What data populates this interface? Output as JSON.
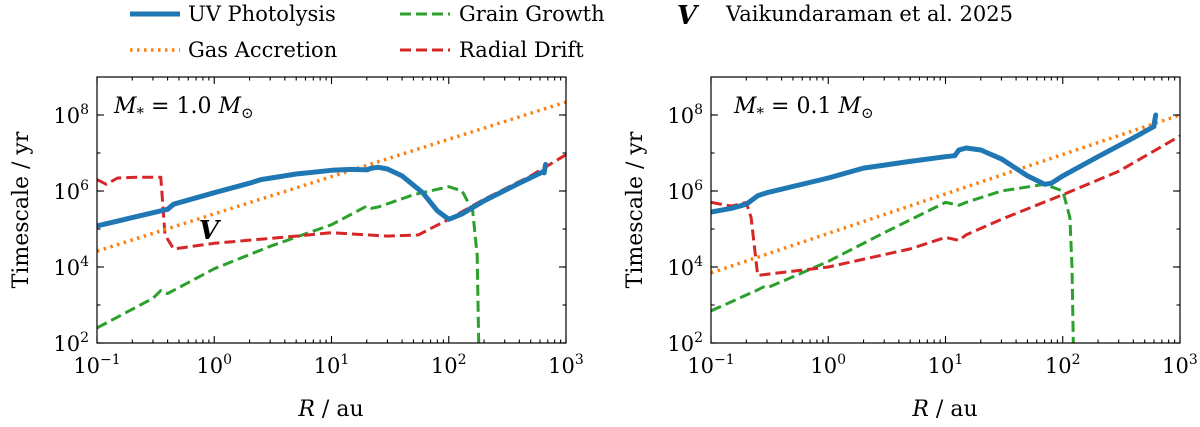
{
  "legend": {
    "entries": [
      {
        "label": "UV Photolysis",
        "color": "#1f77b4",
        "style": "solid"
      },
      {
        "label": "Grain Growth",
        "color": "#2ca02c",
        "style": "dashed"
      },
      {
        "label": "Vaikundaraman et al. 2025",
        "color": "#1f77b4",
        "style": "marker",
        "marker_glyph": "V"
      },
      {
        "label": "Gas Accretion",
        "color": "#ff7f0e",
        "style": "dotted"
      },
      {
        "label": "Radial Drift",
        "color": "#d62728",
        "style": "dashed"
      }
    ],
    "placement": "top"
  },
  "chart_data": [
    {
      "type": "line",
      "annotation": {
        "M": "M",
        "star_sub": "*",
        "eq": " = 1.0 ",
        "sun_sub": "⊙"
      },
      "xlabel": {
        "var": "R",
        "unit": " / au"
      },
      "ylabel": "Timescale / yr",
      "xscale": "log",
      "yscale": "log",
      "xlim": [
        0.1,
        1000
      ],
      "ylim": [
        100,
        1000000000
      ],
      "xticks": [
        {
          "value": 0.1,
          "base": "10",
          "exp": "−1"
        },
        {
          "value": 1,
          "base": "10",
          "exp": "0"
        },
        {
          "value": 10,
          "base": "10",
          "exp": "1"
        },
        {
          "value": 100,
          "base": "10",
          "exp": "2"
        },
        {
          "value": 1000,
          "base": "10",
          "exp": "3"
        }
      ],
      "yticks": [
        {
          "value": 100,
          "base": "10",
          "exp": "2"
        },
        {
          "value": 10000,
          "base": "10",
          "exp": "4"
        },
        {
          "value": 1000000,
          "base": "10",
          "exp": "6"
        },
        {
          "value": 100000000,
          "base": "10",
          "exp": "8"
        }
      ],
      "grid": false,
      "series": [
        {
          "name": "UV Photolysis",
          "color": "#1f77b4",
          "style": "solid",
          "x": [
            0.1,
            0.2,
            0.4,
            0.45,
            1,
            2,
            2.5,
            5,
            10,
            15,
            20,
            22,
            25,
            30,
            40,
            60,
            80,
            100,
            130,
            200,
            400,
            650,
            650,
            670
          ],
          "y": [
            120000,
            200000,
            330000,
            450000,
            900000,
            1600000,
            2000000,
            2800000,
            3500000,
            3700000,
            3600000,
            4000000,
            4200000,
            3800000,
            2500000,
            900000,
            300000,
            180000,
            250000,
            550000,
            1600000,
            3300000,
            3000000,
            5000000
          ]
        },
        {
          "name": "Gas Accretion",
          "color": "#ff7f0e",
          "style": "dotted",
          "x": [
            0.1,
            1000
          ],
          "y": [
            26000,
            220000000
          ]
        },
        {
          "name": "Grain Growth",
          "color": "#2ca02c",
          "style": "dashed",
          "x": [
            0.1,
            0.3,
            0.35,
            0.4,
            1,
            3,
            10,
            20,
            22,
            25,
            50,
            100,
            130,
            160,
            175,
            180
          ],
          "y": [
            250,
            1500,
            2400,
            2000,
            9000,
            35000,
            130000,
            400000,
            350000,
            380000,
            800000,
            1300000,
            1000000,
            300000,
            20000,
            100
          ]
        },
        {
          "name": "Radial Drift",
          "color": "#d62728",
          "style": "dashed",
          "x": [
            0.1,
            0.12,
            0.15,
            0.22,
            0.35,
            0.38,
            0.45,
            1,
            5,
            10,
            30,
            55,
            100,
            200,
            500,
            1000
          ],
          "y": [
            2000000,
            1500000,
            2200000,
            2300000,
            2300000,
            70000,
            30000,
            42000,
            65000,
            80000,
            65000,
            70000,
            180000,
            600000,
            2500000,
            9000000
          ]
        }
      ],
      "markers": [
        {
          "name": "Vaikundaraman et al. 2025",
          "glyph": "V",
          "color": "#1f77b4",
          "x": 0.9,
          "y": 95000
        }
      ]
    },
    {
      "type": "line",
      "annotation": {
        "M": "M",
        "star_sub": "*",
        "eq": " = 0.1 ",
        "sun_sub": "⊙"
      },
      "xlabel": {
        "var": "R",
        "unit": " / au"
      },
      "ylabel": "Timescale / yr",
      "xscale": "log",
      "yscale": "log",
      "xlim": [
        0.1,
        1000
      ],
      "ylim": [
        100,
        1000000000
      ],
      "xticks": [
        {
          "value": 0.1,
          "base": "10",
          "exp": "−1"
        },
        {
          "value": 1,
          "base": "10",
          "exp": "0"
        },
        {
          "value": 10,
          "base": "10",
          "exp": "1"
        },
        {
          "value": 100,
          "base": "10",
          "exp": "2"
        },
        {
          "value": 1000,
          "base": "10",
          "exp": "3"
        }
      ],
      "yticks": [
        {
          "value": 100,
          "base": "10",
          "exp": "2"
        },
        {
          "value": 10000,
          "base": "10",
          "exp": "4"
        },
        {
          "value": 1000000,
          "base": "10",
          "exp": "6"
        },
        {
          "value": 100000000,
          "base": "10",
          "exp": "8"
        }
      ],
      "grid": false,
      "series": [
        {
          "name": "UV Photolysis",
          "color": "#1f77b4",
          "style": "solid",
          "x": [
            0.1,
            0.15,
            0.2,
            0.25,
            0.3,
            1,
            2,
            5,
            10,
            12,
            13,
            15,
            20,
            30,
            50,
            70,
            80,
            100,
            200,
            400,
            600,
            600,
            620
          ],
          "y": [
            280000,
            350000,
            450000,
            750000,
            900000,
            2200000,
            4000000,
            6000000,
            8000000,
            8500000,
            12000000,
            13500000,
            12000000,
            7000000,
            2500000,
            1500000,
            1600000,
            2500000,
            8000000,
            25000000,
            50000000,
            55000000,
            100000000
          ]
        },
        {
          "name": "Gas Accretion",
          "color": "#ff7f0e",
          "style": "dotted",
          "x": [
            0.1,
            1000
          ],
          "y": [
            7000,
            100000000
          ]
        },
        {
          "name": "Grain Growth",
          "color": "#2ca02c",
          "style": "dashed",
          "x": [
            0.1,
            0.25,
            0.28,
            0.3,
            1,
            3,
            10,
            13,
            15,
            30,
            70,
            100,
            115,
            120,
            123
          ],
          "y": [
            700,
            2500,
            3000,
            2800,
            14000,
            80000,
            500000,
            420000,
            500000,
            1000000,
            1500000,
            1000000,
            200000,
            10000,
            100
          ]
        },
        {
          "name": "Radial Drift",
          "color": "#d62728",
          "style": "dashed",
          "x": [
            0.1,
            0.15,
            0.2,
            0.22,
            0.25,
            1,
            5,
            10,
            13,
            15,
            30,
            100,
            300,
            1000
          ],
          "y": [
            500000,
            400000,
            500000,
            200000,
            6000,
            10000,
            30000,
            60000,
            50000,
            70000,
            180000,
            800000,
            3300000,
            28000000
          ]
        }
      ],
      "markers": []
    }
  ]
}
